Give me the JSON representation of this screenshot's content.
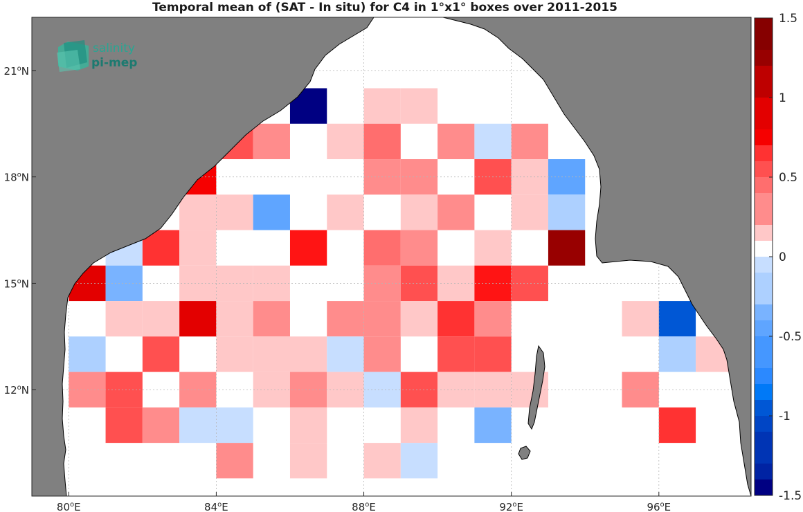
{
  "title": "Temporal mean of (SAT - In situ) for C4 in 1°x1° boxes over 2011-2015",
  "logo": {
    "line1": "salinity",
    "line2": "pi-mep"
  },
  "colors": {
    "land": "#808080",
    "ocean": "#ffffff",
    "coast": "#000000"
  },
  "axes": {
    "lon_range": [
      79,
      98.5
    ],
    "lat_range": [
      9,
      22.5
    ],
    "x_ticks": [
      {
        "value": 80,
        "deg": "80",
        "hemi": "E"
      },
      {
        "value": 84,
        "deg": "84",
        "hemi": "E"
      },
      {
        "value": 88,
        "deg": "88",
        "hemi": "E"
      },
      {
        "value": 92,
        "deg": "92",
        "hemi": "E"
      },
      {
        "value": 96,
        "deg": "96",
        "hemi": "E"
      }
    ],
    "y_ticks": [
      {
        "value": 12,
        "deg": "12",
        "hemi": "N"
      },
      {
        "value": 15,
        "deg": "15",
        "hemi": "N"
      },
      {
        "value": 18,
        "deg": "18",
        "hemi": "N"
      },
      {
        "value": 21,
        "deg": "21",
        "hemi": "N"
      }
    ],
    "grid": true
  },
  "colorbar": {
    "range": [
      -1.5,
      1.5
    ],
    "step": 0.1,
    "ticks": [
      {
        "value": 1.5,
        "label": "1.5"
      },
      {
        "value": 1,
        "label": "1"
      },
      {
        "value": 0.5,
        "label": "0.5"
      },
      {
        "value": 0,
        "label": "0"
      },
      {
        "value": -0.5,
        "label": "-0.5"
      },
      {
        "value": -1,
        "label": "-1"
      },
      {
        "value": -1.5,
        "label": "-1.5"
      }
    ]
  },
  "chart_data": {
    "type": "heatmap",
    "cell_size_deg": 1,
    "cells": [
      {
        "lon": 86.5,
        "lat": 20,
        "value": -1.5
      },
      {
        "lon": 88.5,
        "lat": 20,
        "value": 0.12
      },
      {
        "lon": 89.5,
        "lat": 20,
        "value": 0.12
      },
      {
        "lon": 84.5,
        "lat": 19,
        "value": 0.45
      },
      {
        "lon": 85.5,
        "lat": 19,
        "value": 0.3
      },
      {
        "lon": 87.5,
        "lat": 19,
        "value": 0.15
      },
      {
        "lon": 88.5,
        "lat": 19,
        "value": 0.42
      },
      {
        "lon": 90.5,
        "lat": 19,
        "value": 0.3
      },
      {
        "lon": 91.5,
        "lat": 19,
        "value": -0.12
      },
      {
        "lon": 92.5,
        "lat": 19,
        "value": 0.3
      },
      {
        "lon": 83.5,
        "lat": 18,
        "value": 0.8
      },
      {
        "lon": 88.5,
        "lat": 18,
        "value": 0.3
      },
      {
        "lon": 89.5,
        "lat": 18,
        "value": 0.3
      },
      {
        "lon": 91.5,
        "lat": 18,
        "value": 0.45
      },
      {
        "lon": 92.5,
        "lat": 18,
        "value": 0.15
      },
      {
        "lon": 93.5,
        "lat": 18,
        "value": -0.5
      },
      {
        "lon": 83.5,
        "lat": 17,
        "value": 0.15
      },
      {
        "lon": 84.5,
        "lat": 17,
        "value": 0.15
      },
      {
        "lon": 85.5,
        "lat": 17,
        "value": -0.5
      },
      {
        "lon": 87.5,
        "lat": 17,
        "value": 0.15
      },
      {
        "lon": 89.5,
        "lat": 17,
        "value": 0.15
      },
      {
        "lon": 90.5,
        "lat": 17,
        "value": 0.3
      },
      {
        "lon": 92.5,
        "lat": 17,
        "value": 0.15
      },
      {
        "lon": 93.5,
        "lat": 17,
        "value": -0.25
      },
      {
        "lon": 81.5,
        "lat": 16,
        "value": -0.12
      },
      {
        "lon": 82.5,
        "lat": 16,
        "value": 0.6
      },
      {
        "lon": 83.5,
        "lat": 16,
        "value": 0.15
      },
      {
        "lon": 86.5,
        "lat": 16,
        "value": 0.7
      },
      {
        "lon": 88.5,
        "lat": 16,
        "value": 0.42
      },
      {
        "lon": 89.5,
        "lat": 16,
        "value": 0.3
      },
      {
        "lon": 91.5,
        "lat": 16,
        "value": 0.15
      },
      {
        "lon": 93.5,
        "lat": 16,
        "value": 1.3
      },
      {
        "lon": 80.5,
        "lat": 15,
        "value": 0.9
      },
      {
        "lon": 81.5,
        "lat": 15,
        "value": -0.4
      },
      {
        "lon": 83.5,
        "lat": 15,
        "value": 0.15
      },
      {
        "lon": 84.5,
        "lat": 15,
        "value": 0.15
      },
      {
        "lon": 85.5,
        "lat": 15,
        "value": 0.15
      },
      {
        "lon": 88.5,
        "lat": 15,
        "value": 0.3
      },
      {
        "lon": 89.5,
        "lat": 15,
        "value": 0.45
      },
      {
        "lon": 90.5,
        "lat": 15,
        "value": 0.15
      },
      {
        "lon": 91.5,
        "lat": 15,
        "value": 0.7
      },
      {
        "lon": 92.5,
        "lat": 15,
        "value": 0.45
      },
      {
        "lon": 81.5,
        "lat": 14,
        "value": 0.15
      },
      {
        "lon": 82.5,
        "lat": 14,
        "value": 0.15
      },
      {
        "lon": 83.5,
        "lat": 14,
        "value": 0.9
      },
      {
        "lon": 84.5,
        "lat": 14,
        "value": 0.15
      },
      {
        "lon": 85.5,
        "lat": 14,
        "value": 0.3
      },
      {
        "lon": 87.5,
        "lat": 14,
        "value": 0.3
      },
      {
        "lon": 88.5,
        "lat": 14,
        "value": 0.3
      },
      {
        "lon": 89.5,
        "lat": 14,
        "value": 0.15
      },
      {
        "lon": 90.5,
        "lat": 14,
        "value": 0.6
      },
      {
        "lon": 91.5,
        "lat": 14,
        "value": 0.3
      },
      {
        "lon": 95.5,
        "lat": 14,
        "value": 0.15
      },
      {
        "lon": 96.5,
        "lat": 14,
        "value": -1.0
      },
      {
        "lon": 80.5,
        "lat": 13,
        "value": -0.25
      },
      {
        "lon": 82.5,
        "lat": 13,
        "value": 0.45
      },
      {
        "lon": 84.5,
        "lat": 13,
        "value": 0.15
      },
      {
        "lon": 85.5,
        "lat": 13,
        "value": 0.15
      },
      {
        "lon": 86.5,
        "lat": 13,
        "value": 0.15
      },
      {
        "lon": 87.5,
        "lat": 13,
        "value": -0.12
      },
      {
        "lon": 88.5,
        "lat": 13,
        "value": 0.3
      },
      {
        "lon": 90.5,
        "lat": 13,
        "value": 0.45
      },
      {
        "lon": 91.5,
        "lat": 13,
        "value": 0.45
      },
      {
        "lon": 96.5,
        "lat": 13,
        "value": -0.25
      },
      {
        "lon": 97.5,
        "lat": 13,
        "value": 0.15
      },
      {
        "lon": 80.5,
        "lat": 12,
        "value": 0.3
      },
      {
        "lon": 81.5,
        "lat": 12,
        "value": 0.45
      },
      {
        "lon": 83.5,
        "lat": 12,
        "value": 0.3
      },
      {
        "lon": 85.5,
        "lat": 12,
        "value": 0.15
      },
      {
        "lon": 86.5,
        "lat": 12,
        "value": 0.3
      },
      {
        "lon": 87.5,
        "lat": 12,
        "value": 0.15
      },
      {
        "lon": 88.5,
        "lat": 12,
        "value": -0.12
      },
      {
        "lon": 89.5,
        "lat": 12,
        "value": 0.5
      },
      {
        "lon": 90.5,
        "lat": 12,
        "value": 0.15
      },
      {
        "lon": 91.5,
        "lat": 12,
        "value": 0.15
      },
      {
        "lon": 92.5,
        "lat": 12,
        "value": 0.15
      },
      {
        "lon": 95.5,
        "lat": 12,
        "value": 0.3
      },
      {
        "lon": 81.5,
        "lat": 11,
        "value": 0.45
      },
      {
        "lon": 82.5,
        "lat": 11,
        "value": 0.3
      },
      {
        "lon": 83.5,
        "lat": 11,
        "value": -0.12
      },
      {
        "lon": 84.5,
        "lat": 11,
        "value": -0.12
      },
      {
        "lon": 86.5,
        "lat": 11,
        "value": 0.15
      },
      {
        "lon": 89.5,
        "lat": 11,
        "value": 0.15
      },
      {
        "lon": 91.5,
        "lat": 11,
        "value": -0.4
      },
      {
        "lon": 96.5,
        "lat": 11,
        "value": 0.6
      },
      {
        "lon": 84.5,
        "lat": 10,
        "value": 0.3
      },
      {
        "lon": 86.5,
        "lat": 10,
        "value": 0.15
      },
      {
        "lon": 88.5,
        "lat": 10,
        "value": 0.15
      },
      {
        "lon": 89.5,
        "lat": 10,
        "value": -0.12
      }
    ]
  }
}
